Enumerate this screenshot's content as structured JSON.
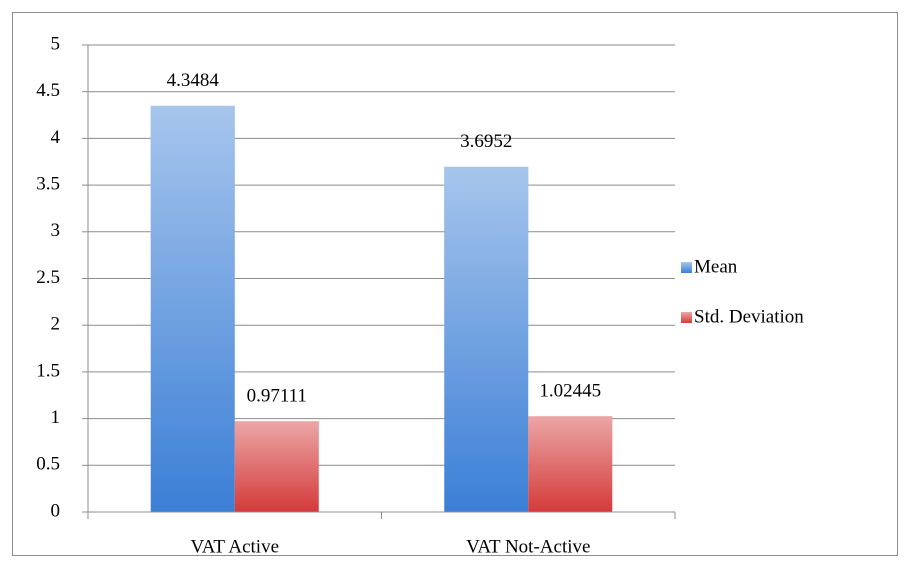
{
  "chart_data": {
    "type": "bar",
    "categories": [
      "VAT Active",
      "VAT Not-Active"
    ],
    "series": [
      {
        "name": "Mean",
        "color": "#3b7fd6",
        "values": [
          4.3484,
          3.6952
        ]
      },
      {
        "name": "Std. Deviation",
        "color": "#d43a3a",
        "values": [
          0.97111,
          1.02445
        ]
      }
    ],
    "ylim": [
      0,
      5
    ],
    "yticks": [
      0,
      0.5,
      1,
      1.5,
      2,
      2.5,
      3,
      3.5,
      4,
      4.5,
      5
    ],
    "grid": true,
    "legend": "right"
  }
}
